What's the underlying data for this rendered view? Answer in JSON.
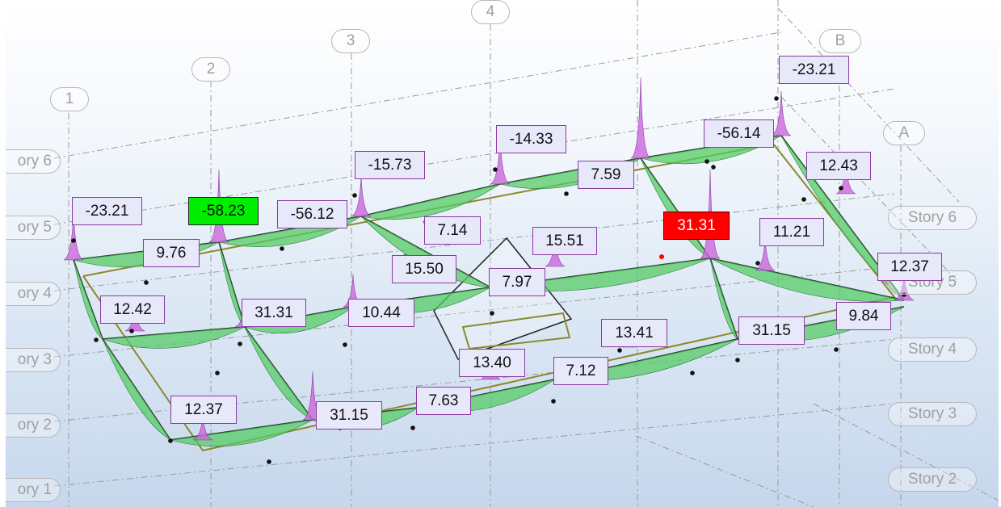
{
  "grid_bubbles": {
    "g1": "1",
    "g2": "2",
    "g3": "3",
    "g4": "4",
    "gA": "A",
    "gB": "B"
  },
  "story_labels": {
    "left": [
      "ory 6",
      "ory 5",
      "ory 4",
      "ory 3",
      "ory 2",
      "ory 1"
    ],
    "right": [
      "Story 6",
      "Story 5",
      "Story 4",
      "Story 3",
      "Story 2"
    ]
  },
  "moment_labels": [
    "-23.21",
    "-58.23",
    "-56.12",
    "-15.73",
    "-14.33",
    "-56.14",
    "-23.21",
    "9.76",
    "7.14",
    "7.59",
    "12.43",
    "15.51",
    "11.21",
    "15.50",
    "7.97",
    "12.37",
    "12.42",
    "31.31",
    "10.44",
    "31.31",
    "13.41",
    "31.15",
    "9.84",
    "13.40",
    "7.12",
    "12.37",
    "31.15",
    "7.63"
  ],
  "highlights": {
    "min_value": "-58.23",
    "max_value": "31.31",
    "min_color": "#00ee00",
    "max_color": "#ff0000"
  },
  "colors": {
    "hogging": "#cc66dd",
    "sagging": "#55cc66",
    "beam": "#222222",
    "slab_edge": "#8a8a2a"
  }
}
